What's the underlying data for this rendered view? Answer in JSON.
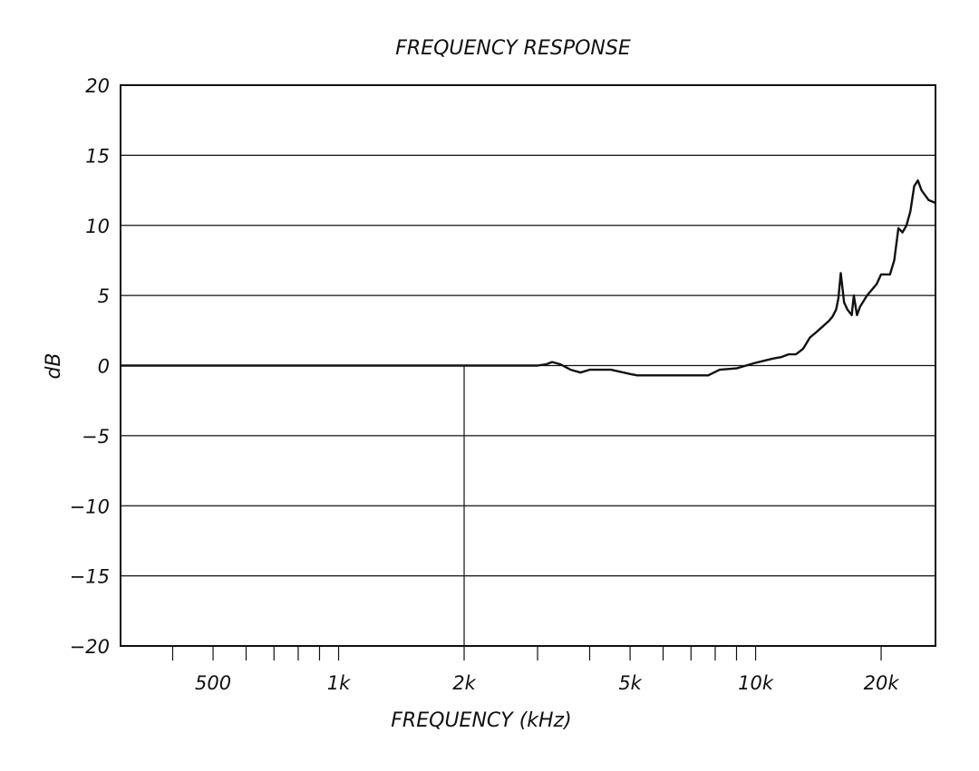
{
  "chart_data": {
    "type": "line",
    "title": "FREQUENCY RESPONSE",
    "xlabel": "FREQUENCY (kHz)",
    "ylabel": "dB",
    "x_scale": "log",
    "xlim": [
      300,
      27000
    ],
    "ylim": [
      -20,
      20
    ],
    "y_ticks": [
      20,
      15,
      10,
      5,
      0,
      -5,
      -10,
      -15,
      -20
    ],
    "y_tick_labels": [
      "20",
      "15",
      "10",
      "5",
      "0",
      "−5",
      "−10",
      "−15",
      "−20"
    ],
    "x_tick_labels": [
      {
        "value": 500,
        "label": "500"
      },
      {
        "value": 1000,
        "label": "1k"
      },
      {
        "value": 2000,
        "label": "2k"
      },
      {
        "value": 5000,
        "label": "5k"
      },
      {
        "value": 10000,
        "label": "10k"
      },
      {
        "value": 20000,
        "label": "20k"
      }
    ],
    "x_minor_ticks": [
      400,
      500,
      600,
      700,
      800,
      900,
      1000,
      2000,
      3000,
      4000,
      5000,
      6000,
      7000,
      8000,
      9000,
      10000,
      20000
    ],
    "grid": "horizontal",
    "reference_vline": 2000,
    "series": [
      {
        "x": [
          300,
          1000,
          2000,
          3000,
          3150,
          3250,
          3400,
          3600,
          3800,
          4000,
          4500,
          5000,
          5200,
          6000,
          7000,
          7700,
          8200,
          9000,
          10000,
          11000,
          11500,
          12000,
          12500,
          13000,
          13500,
          14000,
          14500,
          15000,
          15300,
          15600,
          15800,
          16000,
          16300,
          16600,
          17000,
          17200,
          17500,
          17800,
          18500,
          19500,
          20000,
          21000,
          21500,
          22000,
          22500,
          23000,
          23500,
          24000,
          24500,
          25000,
          26000,
          27000
        ],
        "y": [
          0,
          0,
          0,
          0,
          0.1,
          0.25,
          0.1,
          -0.3,
          -0.5,
          -0.3,
          -0.3,
          -0.6,
          -0.7,
          -0.7,
          -0.7,
          -0.7,
          -0.3,
          -0.2,
          0.2,
          0.5,
          0.6,
          0.8,
          0.8,
          1.2,
          2.0,
          2.4,
          2.8,
          3.2,
          3.5,
          4.0,
          4.8,
          6.6,
          4.5,
          4.0,
          3.6,
          5.0,
          3.6,
          4.2,
          5.0,
          5.8,
          6.5,
          6.5,
          7.5,
          9.8,
          9.5,
          10.0,
          11.0,
          12.8,
          13.2,
          12.5,
          11.8,
          11.6
        ]
      }
    ]
  }
}
